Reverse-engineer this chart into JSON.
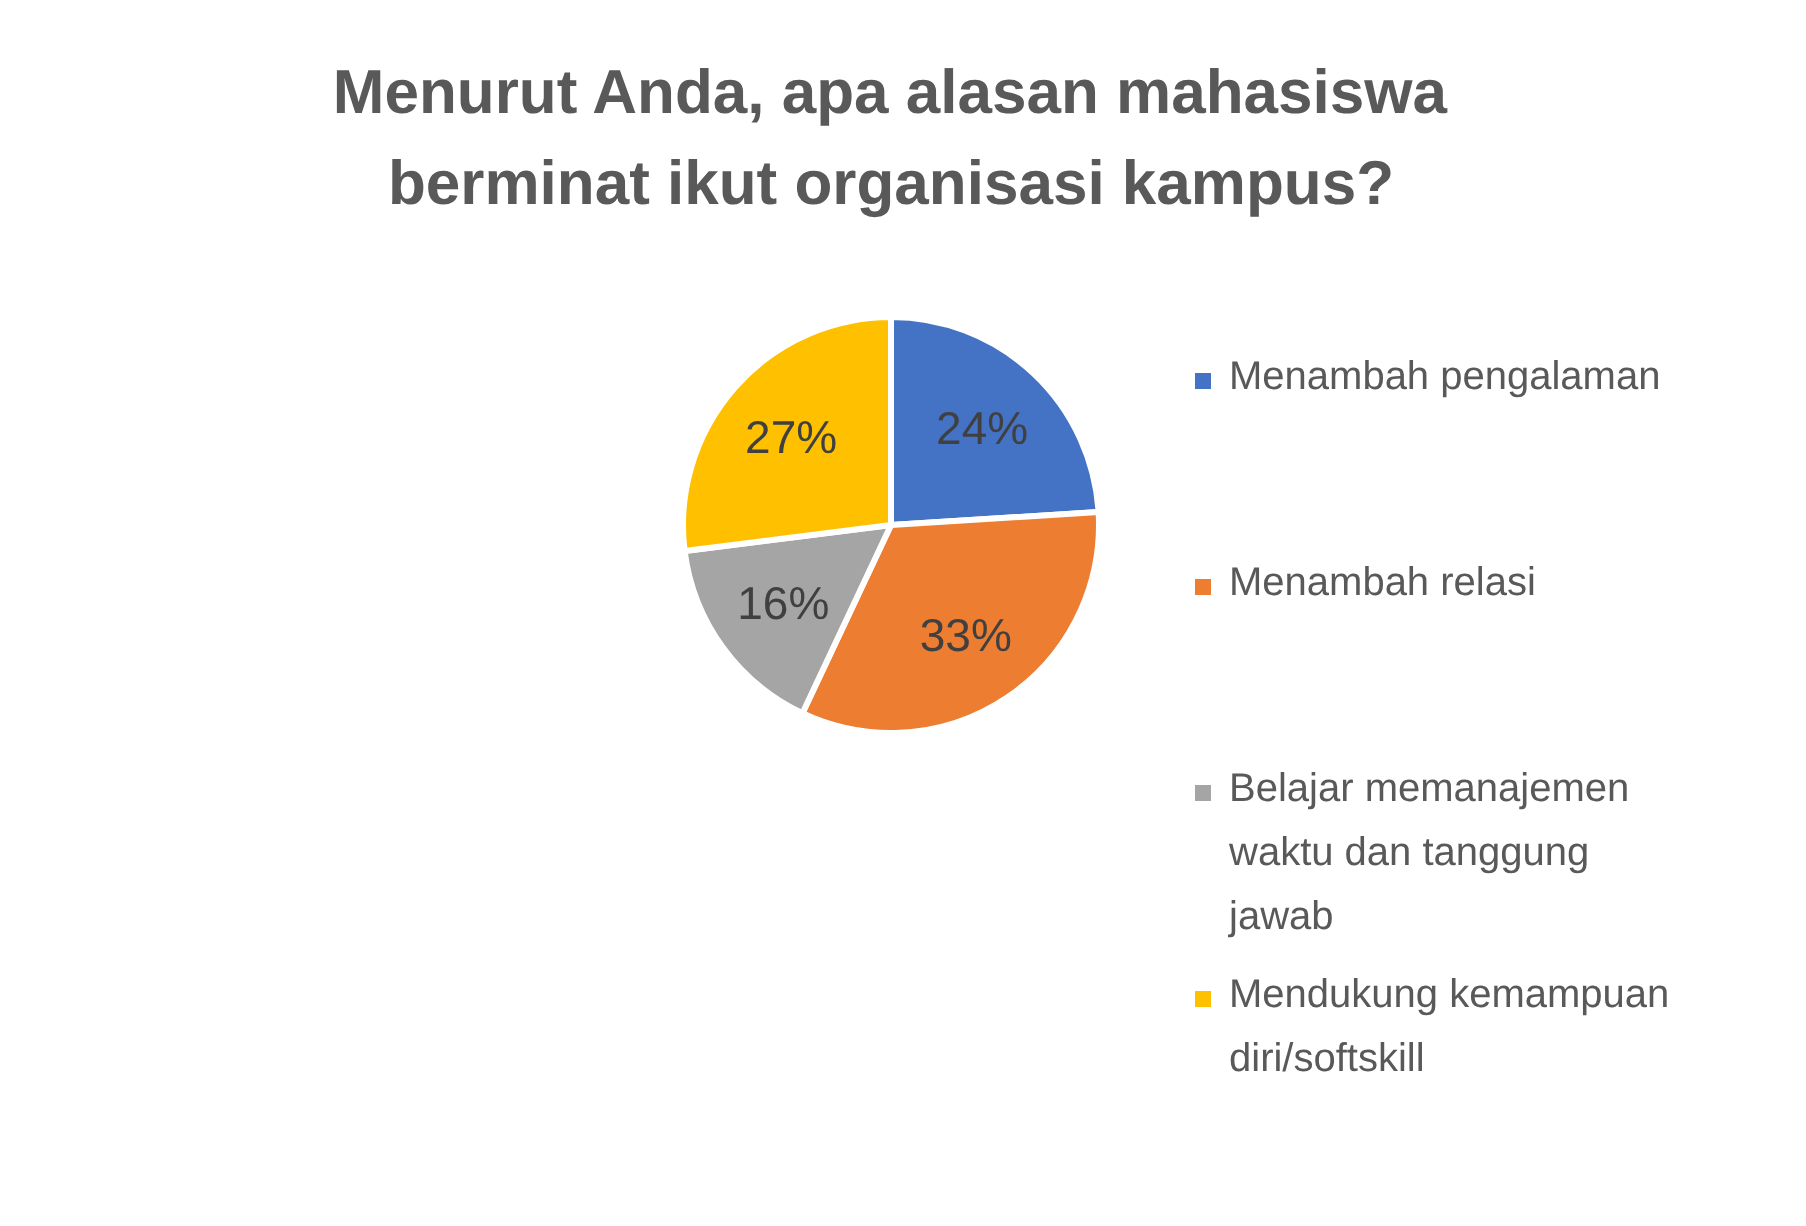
{
  "chart_data": {
    "type": "pie",
    "title": "Menurut Anda, apa alasan mahasiswa berminat ikut organisasi kampus?",
    "categories": [
      "Menambah pengalaman",
      "Menambah relasi",
      "Belajar memanajemen waktu dan tanggung jawab",
      "Mendukung kemampuan diri/softskill"
    ],
    "values": [
      24,
      33,
      16,
      27
    ],
    "colors": [
      "#4472c4",
      "#ed7d31",
      "#a5a5a5",
      "#ffc000"
    ],
    "value_labels": [
      "24%",
      "33%",
      "16%",
      "27%"
    ],
    "legend": "right"
  }
}
